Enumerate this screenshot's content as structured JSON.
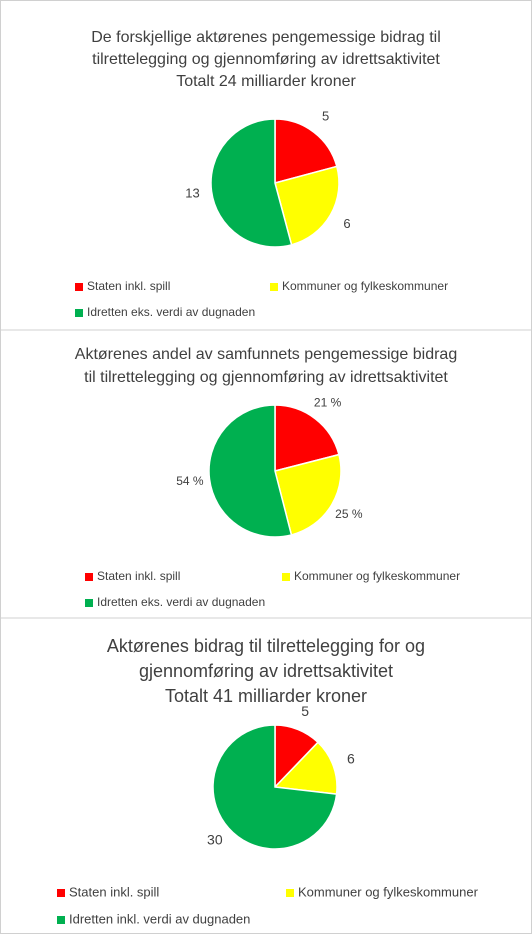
{
  "chart_data": [
    {
      "type": "pie",
      "title": [
        "De forskjellige aktørenes pengemessige bidrag til",
        "tilrettelegging og gjennomføring av idrettsaktivitet",
        "Totalt 24 milliarder kroner"
      ],
      "categories": [
        "Staten inkl. spill",
        "Kommuner og fylkeskommuner",
        "Idretten eks. verdi av dugnaden"
      ],
      "values": [
        5,
        6,
        13
      ],
      "colors": [
        "#ff0000",
        "#ffff00",
        "#00b050"
      ]
    },
    {
      "type": "pie",
      "title": [
        "Aktørenes andel av samfunnets pengemessige bidrag",
        "til tilrettelegging og gjennomføring av idrettsaktivitet"
      ],
      "categories": [
        "Staten inkl. spill",
        "Kommuner og fylkeskommuner",
        "Idretten eks. verdi av dugnaden"
      ],
      "values": [
        21,
        25,
        54
      ],
      "value_labels": [
        "21 %",
        "25 %",
        "54 %"
      ],
      "colors": [
        "#ff0000",
        "#ffff00",
        "#00b050"
      ]
    },
    {
      "type": "pie",
      "title": [
        "Aktørenes bidrag til tilrettelegging for og",
        "gjennomføring av idrettsaktivitet",
        "Totalt 41 milliarder kroner"
      ],
      "categories": [
        "Staten inkl. spill",
        "Kommuner og fylkeskommuner",
        "Idretten inkl. verdi av dugnaden"
      ],
      "values": [
        5,
        6,
        30
      ],
      "colors": [
        "#ff0000",
        "#ffff00",
        "#00b050"
      ]
    }
  ]
}
